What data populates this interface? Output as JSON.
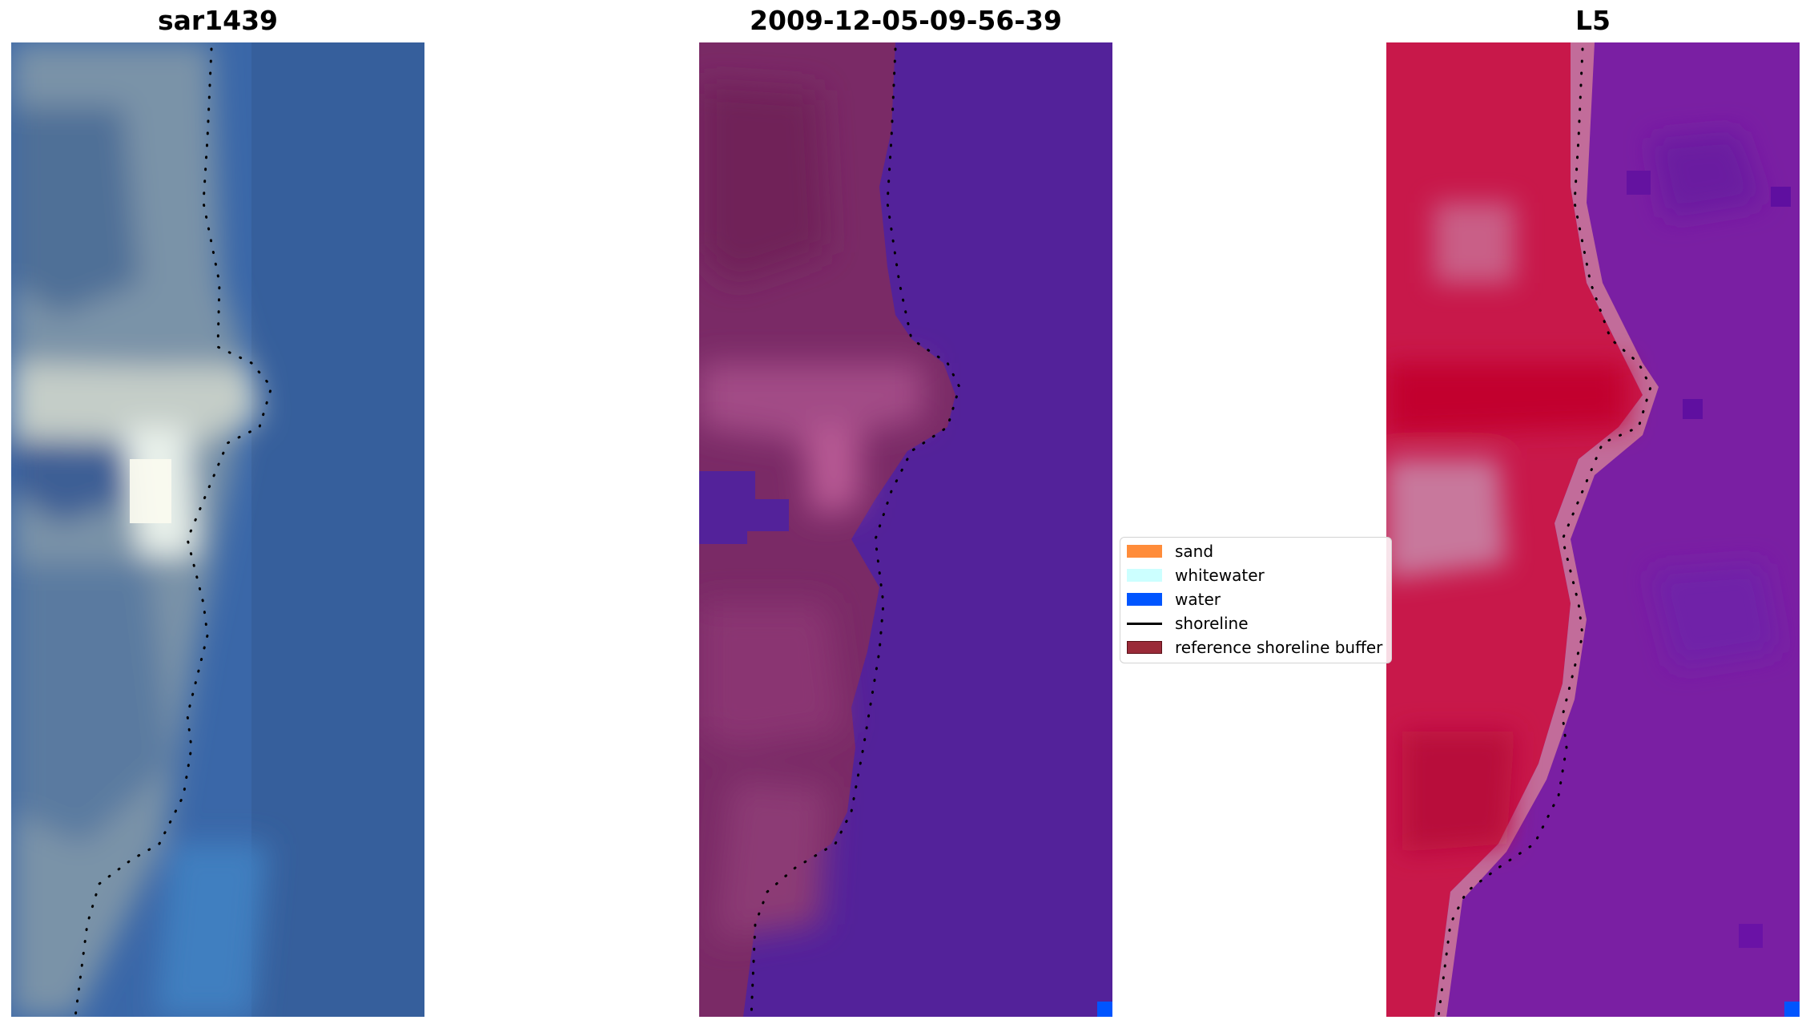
{
  "panels": [
    {
      "title": "sar1439"
    },
    {
      "title": "2009-12-05-09-56-39"
    },
    {
      "title": "L5"
    }
  ],
  "legend": {
    "items": [
      {
        "label": "sand",
        "color": "#ff8c3a",
        "kind": "patch"
      },
      {
        "label": "whitewater",
        "color": "#ccffff",
        "kind": "patch"
      },
      {
        "label": "water",
        "color": "#0055ff",
        "kind": "patch"
      },
      {
        "label": "shoreline",
        "color": "#000000",
        "kind": "line"
      },
      {
        "label": "reference shoreline buffer",
        "color": "#9a2a38",
        "kind": "patch"
      }
    ]
  },
  "colors": {
    "rgb_water": "#3a6fb0",
    "rgb_land": "#7f95a3",
    "classified_water": "#53229a",
    "classified_land": "#7a2a66",
    "index_land": "#c8184a",
    "index_water": "#7a1fa3",
    "water_pixel": "#0055ff"
  }
}
